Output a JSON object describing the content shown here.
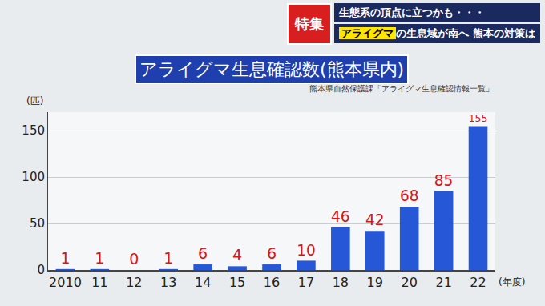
{
  "header": {
    "badge": "特集",
    "line1": "生態系の頂点に立つかも・・・",
    "line2_highlight": "アライグマ",
    "line2_rest": "の生息域が南へ 熊本の対策は"
  },
  "chart_data": {
    "type": "bar",
    "title": "アライグマ生息確認数(熊本県内)",
    "source": "熊本県自然保護課「アライグマ生息確認情報一覧」",
    "y_unit": "(匹)",
    "x_unit": "(年度)",
    "categories": [
      "2010",
      "11",
      "12",
      "13",
      "14",
      "15",
      "16",
      "17",
      "18",
      "19",
      "20",
      "21",
      "22"
    ],
    "values": [
      1,
      1,
      0,
      1,
      6,
      4,
      6,
      10,
      46,
      42,
      68,
      85,
      155
    ],
    "color": "#2557d6",
    "ylim": [
      0,
      170
    ],
    "yticks": [
      0,
      50,
      100,
      150
    ],
    "grid": true,
    "data_labels": true
  }
}
